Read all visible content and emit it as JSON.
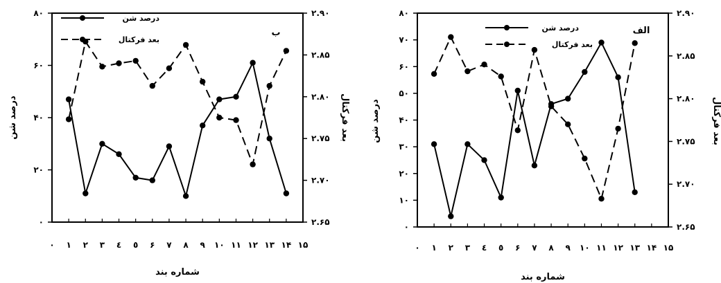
{
  "chart_data": [
    {
      "type": "line",
      "panel_label": "ب",
      "x": [
        1,
        2,
        3,
        4,
        5,
        6,
        7,
        8,
        9,
        10,
        11,
        12,
        13,
        14
      ],
      "xticks": [
        "٠",
        "١",
        "٢",
        "٣",
        "٤",
        "٥",
        "۶",
        "٧",
        "٨",
        "٩",
        "١٠",
        "١١",
        "١٢",
        "١٣",
        "١۴",
        "١۵"
      ],
      "xlim": [
        0,
        15
      ],
      "xlabel": "شماره بند",
      "ylabel": "درصد شن",
      "ylim": [
        0,
        80
      ],
      "yticks": [
        "٠",
        "٢٠",
        "۴٠",
        "۶٠",
        "٨٠"
      ],
      "y2label": "بعد فرکتال",
      "y2lim": [
        2.65,
        2.9
      ],
      "y2ticks": [
        "٢.۶۵",
        "٢.٧٠",
        "٢.٧۵",
        "٢.٨٠",
        "٢.٨۵",
        "٢.٩٠"
      ],
      "legend_position": "top-left",
      "series": [
        {
          "name": "درصد شن",
          "axis": "left",
          "style": "solid",
          "values": [
            47,
            11,
            30,
            26,
            17,
            16,
            29,
            10,
            37,
            47,
            48,
            61,
            32,
            11
          ]
        },
        {
          "name": "بعد فرکتال",
          "axis": "right",
          "style": "dashed",
          "values": [
            2.773,
            2.866,
            2.836,
            2.84,
            2.843,
            2.813,
            2.834,
            2.862,
            2.818,
            2.775,
            2.772,
            2.719,
            2.813,
            2.855
          ]
        }
      ]
    },
    {
      "type": "line",
      "panel_label": "الف",
      "x": [
        1,
        2,
        3,
        4,
        5,
        6,
        7,
        8,
        9,
        10,
        11,
        12,
        13
      ],
      "xticks": [
        "٠",
        "١",
        "٢",
        "٣",
        "٤",
        "٥",
        "۶",
        "٧",
        "٨",
        "٩",
        "١٠",
        "١١",
        "١٢",
        "١٣",
        "١۴",
        "١۵"
      ],
      "xlim": [
        0,
        15
      ],
      "xlabel": "شماره بند",
      "ylabel": "درصد شن",
      "ylim": [
        0,
        80
      ],
      "yticks": [
        "٠",
        "١٠",
        "٢٠",
        "٣٠",
        "۴٠",
        "۵٠",
        "۶٠",
        "٧٠",
        "٨٠"
      ],
      "y2label": "بعد فرکتال",
      "y2lim": [
        2.65,
        2.9
      ],
      "y2ticks": [
        "٢.۶۵",
        "٢.٧٠",
        "٢.٧۵",
        "٢.٨٠",
        "٢.٨۵",
        "٢.٩٠"
      ],
      "legend_position": "top-center",
      "series": [
        {
          "name": "درصد شن",
          "axis": "left",
          "style": "solid",
          "values": [
            31,
            4,
            31,
            25,
            11,
            51,
            23,
            46,
            48,
            58,
            69,
            56,
            13
          ]
        },
        {
          "name": "بعد فرکتال",
          "axis": "right",
          "style": "dashed",
          "values": [
            2.829,
            2.872,
            2.832,
            2.84,
            2.826,
            2.763,
            2.857,
            2.791,
            2.77,
            2.73,
            2.683,
            2.765,
            2.865
          ]
        }
      ]
    }
  ]
}
